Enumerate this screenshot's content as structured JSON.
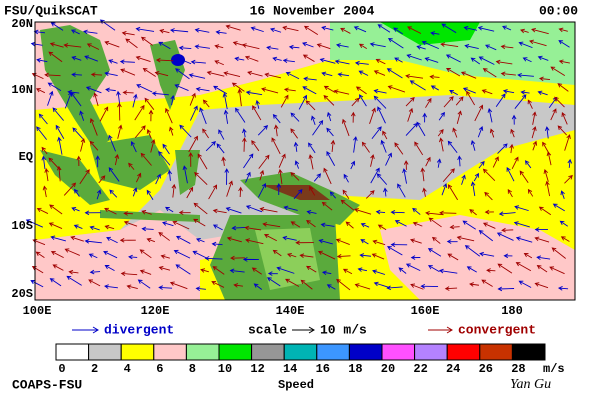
{
  "header": {
    "source": "FSU/QuikSCAT",
    "date": "16 November 2004",
    "time": "00:00"
  },
  "map": {
    "lat_labels": [
      "20N",
      "10N",
      "EQ",
      "10S",
      "20S"
    ],
    "lon_labels": [
      "100E",
      "120E",
      "140E",
      "160E",
      "180"
    ]
  },
  "legend": {
    "divergent": "divergent",
    "scale": "scale",
    "scale_value": "10 m/s",
    "convergent": "convergent"
  },
  "colorbar": {
    "colors": [
      "#ffffff",
      "#c8c8c8",
      "#ffff00",
      "#ffc8c8",
      "#96f096",
      "#00e600",
      "#969696",
      "#00b4b4",
      "#3c96ff",
      "#0000c8",
      "#ff50ff",
      "#b482ff",
      "#ff0000",
      "#c83200",
      "#000000"
    ],
    "labels": [
      0,
      2,
      4,
      6,
      8,
      10,
      12,
      14,
      16,
      18,
      20,
      22,
      24,
      26,
      28
    ],
    "unit": "m/s",
    "title": "Speed"
  },
  "footer": {
    "credit": "COAPS-FSU",
    "author": "Yan Gu"
  }
}
